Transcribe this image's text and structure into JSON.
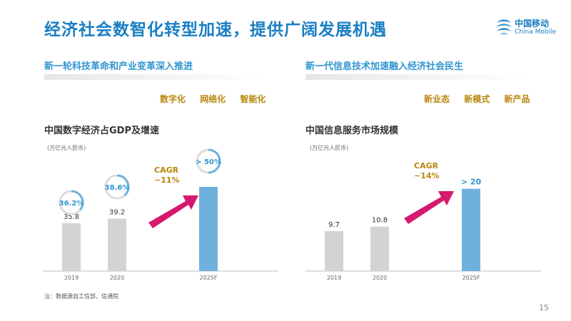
{
  "header": {
    "title": "经济社会数智化转型加速，提供广阔发展机遇",
    "logo_cn": "中国移动",
    "logo_en": "China Mobile"
  },
  "left_section": {
    "heading": "新一轮科技革命和产业变革深入推进",
    "tags": [
      "数字化",
      "网络化",
      "智能化"
    ]
  },
  "right_section": {
    "heading": "新一代信息技术加速融入经济社会民生",
    "tags": [
      "新业态",
      "新模式",
      "新产品"
    ]
  },
  "footer": {
    "note": "注：数据源自工信部、信通院",
    "page": "15"
  },
  "colors": {
    "title_blue": "#1a7fc2",
    "gray_bar": "#d3d3d3",
    "blue_bar": "#6fb1dd",
    "gold": "#b8860b",
    "arrow": "#d6186e"
  },
  "chart_data": [
    {
      "type": "bar",
      "title": "中国数字经济占GDP及增速",
      "unit": "(万亿元人民币)",
      "categories": [
        "2019",
        "2020",
        "2025F"
      ],
      "values": [
        35.8,
        39.2,
        null
      ],
      "value_labels": [
        "35.8",
        "39.2",
        ""
      ],
      "shares": [
        36.2,
        38.6,
        50
      ],
      "share_labels": [
        "36.2%",
        "38.6%",
        "> 50%"
      ],
      "cagr_label": "CAGR",
      "cagr_value": "~11%",
      "ylim": [
        0,
        80
      ]
    },
    {
      "type": "bar",
      "title": "中国信息服务市场规模",
      "unit": "(万亿元人民币)",
      "categories": [
        "2019",
        "2020",
        "2025F"
      ],
      "values": [
        9.7,
        10.8,
        20
      ],
      "value_labels": [
        "9.7",
        "10.8",
        "> 20"
      ],
      "cagr_label": "CAGR",
      "cagr_value": "~14%",
      "ylim": [
        0,
        26
      ]
    }
  ]
}
